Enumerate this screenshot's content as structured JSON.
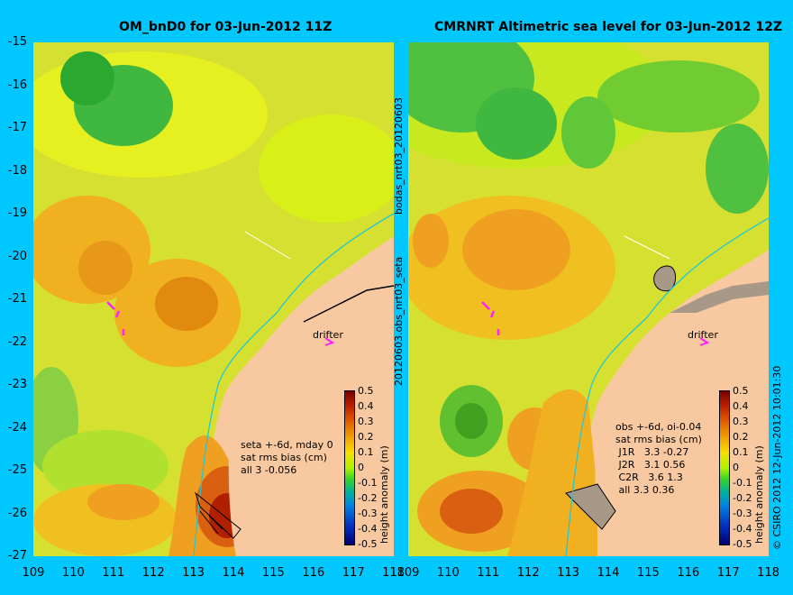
{
  "left": {
    "title": "OM_bnD0 for 03-Jun-2012 11Z",
    "info": "seta +-6d, mday 0\nsat rms bias (cm)\nall 3 -0.056",
    "drifter": "drifter"
  },
  "right": {
    "title": "CMRNRT Altimetric sea level  for 03-Jun-2012 12Z",
    "info": "obs +-6d, oi-0.04\nsat rms bias (cm)\n J1R   3.3 -0.27\n J2R   3.1 0.56\n C2R   3.6 1.3\n all 3.3 0.36",
    "drifter": "drifter"
  },
  "side_text_top": "bodas_nrt03_20120603",
  "side_text_bottom": "20120603.obs_nrt03_seta",
  "credit": "© CSIRO 2012  12-Jun-2012 10:01:30",
  "lat_labels": [
    "-15",
    "-16",
    "-17",
    "-18",
    "-19",
    "-20",
    "-21",
    "-22",
    "-23",
    "-24",
    "-25",
    "-26",
    "-27"
  ],
  "lon_labels": [
    "109",
    "110",
    "111",
    "112",
    "113",
    "114",
    "115",
    "116",
    "117",
    "118"
  ],
  "colorbar": {
    "ticks": [
      "0.5",
      "0.4",
      "0.3",
      "0.2",
      "0.1",
      "0",
      "-0.1",
      "-0.2",
      "-0.3",
      "-0.4",
      "-0.5"
    ],
    "label": "height anomaly (m)"
  }
}
